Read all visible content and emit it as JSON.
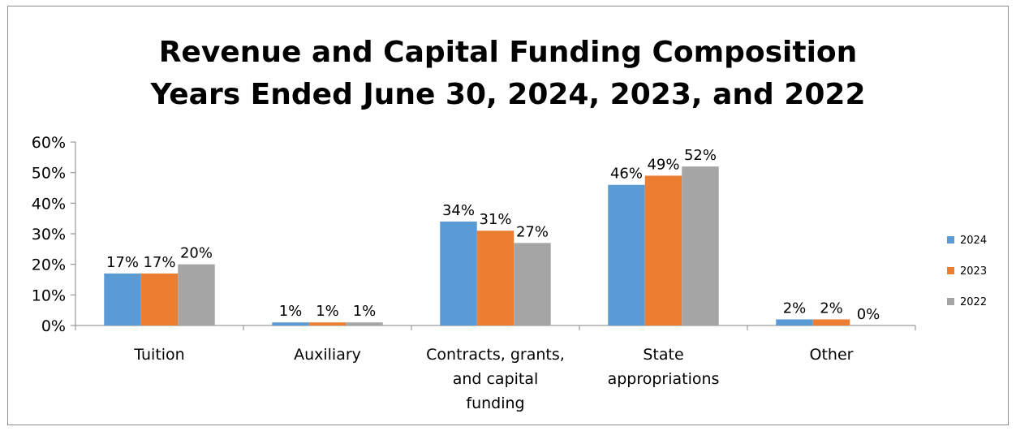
{
  "chart_data": {
    "type": "bar",
    "title": "Revenue and Capital Funding Composition",
    "subtitle": "Years Ended June 30, 2024, 2023, and 2022",
    "categories": [
      [
        "Tuition"
      ],
      [
        "Auxiliary"
      ],
      [
        "Contracts, grants,",
        "and capital",
        "funding"
      ],
      [
        "State",
        "appropriations"
      ],
      [
        "Other"
      ]
    ],
    "series": [
      {
        "name": "2024",
        "color": "#5b9bd5",
        "values": [
          17,
          1,
          34,
          46,
          2
        ],
        "labels": [
          "17%",
          "1%",
          "34%",
          "46%",
          "2%"
        ]
      },
      {
        "name": "2023",
        "color": "#ed7d31",
        "values": [
          17,
          1,
          31,
          49,
          2
        ],
        "labels": [
          "17%",
          "1%",
          "31%",
          "49%",
          "2%"
        ]
      },
      {
        "name": "2022",
        "color": "#a5a5a5",
        "values": [
          20,
          1,
          27,
          52,
          0
        ],
        "labels": [
          "20%",
          "1%",
          "27%",
          "52%",
          "0%"
        ]
      }
    ],
    "yticks": [
      "0%",
      "10%",
      "20%",
      "30%",
      "40%",
      "50%",
      "60%"
    ],
    "ylim": [
      0,
      60
    ],
    "grid": false,
    "legend_position": "right"
  }
}
